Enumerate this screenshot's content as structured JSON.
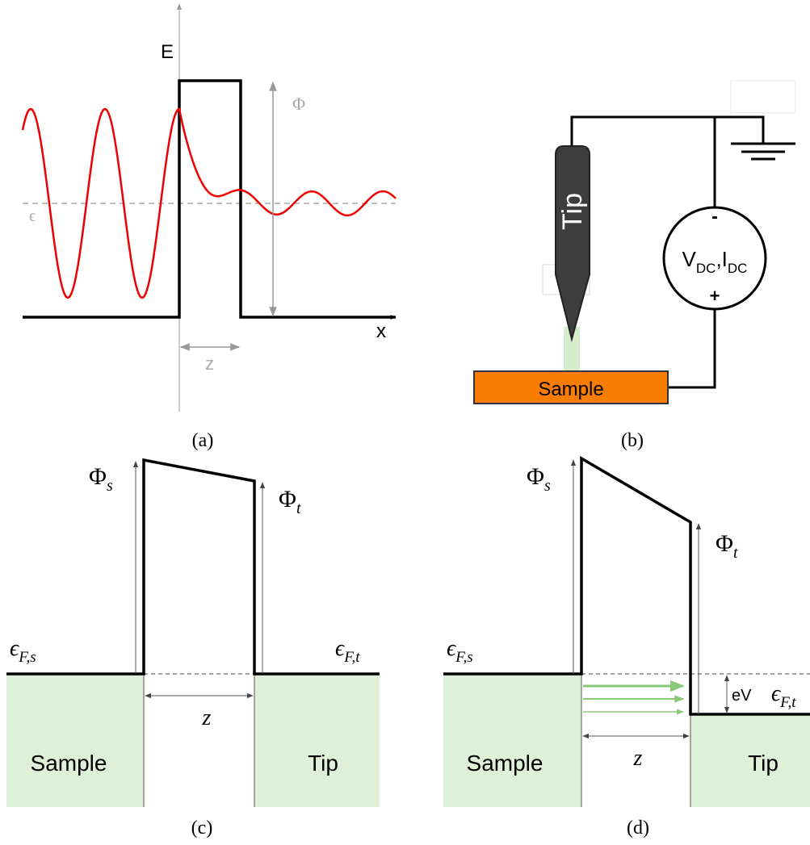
{
  "panel_a": {
    "energy_label": "E",
    "barrier_label": "Φ",
    "level_label": "ϵ",
    "x_label": "x",
    "width_label": "z",
    "caption": "(a)"
  },
  "panel_b": {
    "tip": "Tip",
    "source": {
      "v": "V",
      "v_sub": "DC",
      "sep": ",",
      "i": "I",
      "i_sub": "DC"
    },
    "minus": "-",
    "plus": "+",
    "sample": "Sample",
    "caption": "(b)"
  },
  "panel_c": {
    "phi_s": {
      "symbol": "Φ",
      "sub": "s"
    },
    "phi_t": {
      "symbol": "Φ",
      "sub": "t"
    },
    "fermi_s": {
      "symbol": "ϵ",
      "sub": "F,s"
    },
    "fermi_t": {
      "symbol": "ϵ",
      "sub": "F,t"
    },
    "width": "z",
    "sample": "Sample",
    "tip": "Tip",
    "caption": "(c)"
  },
  "panel_d": {
    "phi_s": {
      "symbol": "Φ",
      "sub": "s"
    },
    "phi_t": {
      "symbol": "Φ",
      "sub": "t"
    },
    "fermi_s": {
      "symbol": "ϵ",
      "sub": "F,s"
    },
    "fermi_t": {
      "symbol": "ϵ",
      "sub": "F,t"
    },
    "bias": "eV",
    "width": "z",
    "sample": "Sample",
    "tip": "Tip",
    "caption": "(d)"
  }
}
